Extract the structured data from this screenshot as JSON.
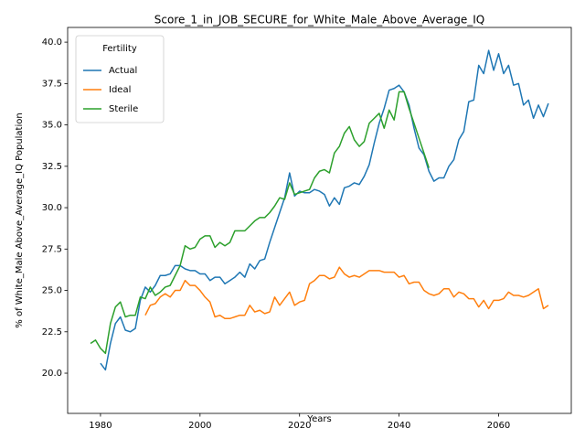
{
  "chart_data": {
    "type": "line",
    "title": "Score_1_in_JOB_SECURE_for_White_Male_Above_Average_IQ",
    "x_label": "Years",
    "y_label": "% of White_Male Above_Average_IQ Population",
    "legend_title": "Fertility",
    "legend_position": "upper left",
    "x": [
      1978,
      1979,
      1980,
      1981,
      1982,
      1983,
      1984,
      1985,
      1986,
      1987,
      1988,
      1989,
      1990,
      1991,
      1992,
      1993,
      1994,
      1995,
      1996,
      1997,
      1998,
      1999,
      2000,
      2001,
      2002,
      2003,
      2004,
      2005,
      2006,
      2007,
      2008,
      2009,
      2010,
      2011,
      2012,
      2013,
      2014,
      2015,
      2016,
      2017,
      2018,
      2019,
      2020,
      2021,
      2022,
      2023,
      2024,
      2025,
      2026,
      2027,
      2028,
      2029,
      2030,
      2031,
      2032,
      2033,
      2034,
      2035,
      2036,
      2037,
      2038,
      2039,
      2040,
      2041,
      2042,
      2043,
      2044,
      2045,
      2046,
      2047,
      2048,
      2049,
      2050,
      2051,
      2052,
      2053,
      2054,
      2055,
      2056,
      2057,
      2058,
      2059,
      2060,
      2061,
      2062,
      2063,
      2064,
      2065,
      2066,
      2067,
      2068,
      2069,
      2070
    ],
    "series": [
      {
        "name": "Actual",
        "color": "#1f77b4",
        "values": [
          null,
          null,
          20.6,
          20.2,
          21.8,
          23.0,
          23.4,
          22.6,
          22.5,
          22.7,
          24.4,
          25.2,
          24.9,
          25.3,
          25.9,
          25.9,
          26.0,
          26.5,
          26.5,
          26.3,
          26.2,
          26.2,
          26.0,
          26.0,
          25.6,
          25.8,
          25.8,
          25.4,
          25.6,
          25.8,
          26.1,
          25.8,
          26.6,
          26.3,
          26.8,
          26.9,
          27.9,
          28.8,
          29.7,
          30.6,
          32.1,
          30.7,
          31.0,
          30.9,
          30.9,
          31.1,
          31.0,
          30.8,
          30.1,
          30.6,
          30.2,
          31.2,
          31.3,
          31.5,
          31.4,
          31.9,
          32.6,
          33.9,
          35.1,
          36.0,
          37.1,
          37.2,
          37.4,
          37.0,
          36.2,
          34.8,
          33.6,
          33.2,
          32.2,
          31.6,
          31.8,
          31.8,
          32.5,
          32.9,
          34.1,
          34.6,
          36.4,
          36.5,
          38.6,
          38.1,
          39.5,
          38.3,
          39.3,
          38.1,
          38.6,
          37.4,
          37.5,
          36.2,
          36.5,
          35.4,
          36.2,
          35.5,
          36.3
        ]
      },
      {
        "name": "Ideal",
        "color": "#ff7f0e",
        "values": [
          null,
          null,
          null,
          null,
          null,
          null,
          null,
          null,
          null,
          null,
          null,
          23.5,
          24.1,
          24.2,
          24.6,
          24.8,
          24.6,
          25.0,
          25.0,
          25.6,
          25.3,
          25.3,
          25.0,
          24.6,
          24.3,
          23.4,
          23.5,
          23.3,
          23.3,
          23.4,
          23.5,
          23.5,
          24.1,
          23.7,
          23.8,
          23.6,
          23.7,
          24.6,
          24.1,
          24.5,
          24.9,
          24.1,
          24.3,
          24.4,
          25.4,
          25.6,
          25.9,
          25.9,
          25.7,
          25.8,
          26.4,
          26.0,
          25.8,
          25.9,
          25.8,
          26.0,
          26.2,
          26.2,
          26.2,
          26.1,
          26.1,
          26.1,
          25.8,
          25.9,
          25.4,
          25.5,
          25.5,
          25.0,
          24.8,
          24.7,
          24.8,
          25.1,
          25.1,
          24.6,
          24.9,
          24.8,
          24.5,
          24.5,
          24.0,
          24.4,
          23.9,
          24.4,
          24.4,
          24.5,
          24.9,
          24.7,
          24.7,
          24.6,
          24.7,
          24.9,
          25.1,
          23.9,
          24.1
        ]
      },
      {
        "name": "Sterile",
        "color": "#2ca02c",
        "values": [
          21.8,
          22.0,
          21.5,
          21.2,
          23.0,
          24.0,
          24.3,
          23.4,
          23.5,
          23.5,
          24.6,
          24.5,
          25.2,
          24.7,
          24.9,
          25.2,
          25.3,
          25.9,
          26.5,
          27.7,
          27.5,
          27.6,
          28.1,
          28.3,
          28.3,
          27.6,
          27.9,
          27.7,
          27.9,
          28.6,
          28.6,
          28.6,
          28.9,
          29.2,
          29.4,
          29.4,
          29.7,
          30.1,
          30.6,
          30.5,
          31.5,
          30.8,
          30.9,
          31.0,
          31.1,
          31.8,
          32.2,
          32.3,
          32.1,
          33.3,
          33.7,
          34.5,
          34.9,
          34.1,
          33.7,
          34.0,
          35.1,
          35.4,
          35.7,
          34.8,
          35.9,
          35.3,
          37.0,
          37.0,
          36.0,
          35.1,
          34.2,
          33.3,
          32.4,
          null,
          null,
          null,
          null,
          null,
          null,
          null,
          null,
          null,
          null,
          null,
          null,
          null,
          null,
          null,
          null,
          null,
          null,
          null,
          null,
          null,
          null,
          null,
          null
        ]
      }
    ],
    "xlim": [
      1973.4,
      2074.6
    ],
    "xticks": [
      1980,
      2000,
      2020,
      2040,
      2060
    ],
    "ylim": [
      17.57,
      40.89
    ],
    "yticks": [
      {
        "value": 20,
        "label": "20.0"
      },
      22.5,
      {
        "value": 25,
        "label": "25.0"
      },
      27.5,
      {
        "value": 30,
        "label": "30.0"
      },
      32.5,
      {
        "value": 35,
        "label": "35.0"
      },
      37.5,
      {
        "value": 40,
        "label": "40.0"
      }
    ],
    "grid": false
  }
}
